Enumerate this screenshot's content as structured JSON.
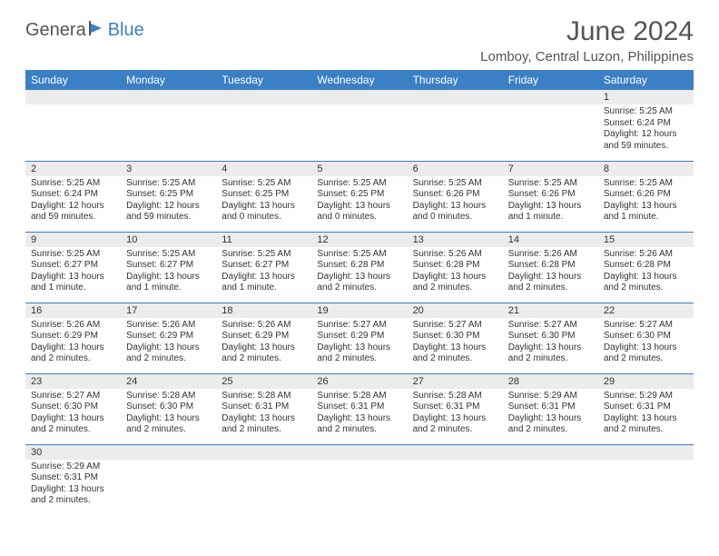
{
  "logo": {
    "part1": "Genera",
    "part2": "Blue"
  },
  "title": "June 2024",
  "location": "Lomboy, Central Luzon, Philippines",
  "colors": {
    "header_bg": "#3b7fc4",
    "header_fg": "#ffffff",
    "daynum_bg": "#ececec",
    "row_divider": "#3b7fc4",
    "text": "#333333",
    "title": "#555555",
    "logo_accent": "#3b7fc4"
  },
  "weekdays": [
    "Sunday",
    "Monday",
    "Tuesday",
    "Wednesday",
    "Thursday",
    "Friday",
    "Saturday"
  ],
  "weeks": [
    [
      null,
      null,
      null,
      null,
      null,
      null,
      {
        "n": "1",
        "sr": "5:25 AM",
        "ss": "6:24 PM",
        "dl": "12 hours and 59 minutes."
      }
    ],
    [
      {
        "n": "2",
        "sr": "5:25 AM",
        "ss": "6:24 PM",
        "dl": "12 hours and 59 minutes."
      },
      {
        "n": "3",
        "sr": "5:25 AM",
        "ss": "6:25 PM",
        "dl": "12 hours and 59 minutes."
      },
      {
        "n": "4",
        "sr": "5:25 AM",
        "ss": "6:25 PM",
        "dl": "13 hours and 0 minutes."
      },
      {
        "n": "5",
        "sr": "5:25 AM",
        "ss": "6:25 PM",
        "dl": "13 hours and 0 minutes."
      },
      {
        "n": "6",
        "sr": "5:25 AM",
        "ss": "6:26 PM",
        "dl": "13 hours and 0 minutes."
      },
      {
        "n": "7",
        "sr": "5:25 AM",
        "ss": "6:26 PM",
        "dl": "13 hours and 1 minute."
      },
      {
        "n": "8",
        "sr": "5:25 AM",
        "ss": "6:26 PM",
        "dl": "13 hours and 1 minute."
      }
    ],
    [
      {
        "n": "9",
        "sr": "5:25 AM",
        "ss": "6:27 PM",
        "dl": "13 hours and 1 minute."
      },
      {
        "n": "10",
        "sr": "5:25 AM",
        "ss": "6:27 PM",
        "dl": "13 hours and 1 minute."
      },
      {
        "n": "11",
        "sr": "5:25 AM",
        "ss": "6:27 PM",
        "dl": "13 hours and 1 minute."
      },
      {
        "n": "12",
        "sr": "5:25 AM",
        "ss": "6:28 PM",
        "dl": "13 hours and 2 minutes."
      },
      {
        "n": "13",
        "sr": "5:26 AM",
        "ss": "6:28 PM",
        "dl": "13 hours and 2 minutes."
      },
      {
        "n": "14",
        "sr": "5:26 AM",
        "ss": "6:28 PM",
        "dl": "13 hours and 2 minutes."
      },
      {
        "n": "15",
        "sr": "5:26 AM",
        "ss": "6:28 PM",
        "dl": "13 hours and 2 minutes."
      }
    ],
    [
      {
        "n": "16",
        "sr": "5:26 AM",
        "ss": "6:29 PM",
        "dl": "13 hours and 2 minutes."
      },
      {
        "n": "17",
        "sr": "5:26 AM",
        "ss": "6:29 PM",
        "dl": "13 hours and 2 minutes."
      },
      {
        "n": "18",
        "sr": "5:26 AM",
        "ss": "6:29 PM",
        "dl": "13 hours and 2 minutes."
      },
      {
        "n": "19",
        "sr": "5:27 AM",
        "ss": "6:29 PM",
        "dl": "13 hours and 2 minutes."
      },
      {
        "n": "20",
        "sr": "5:27 AM",
        "ss": "6:30 PM",
        "dl": "13 hours and 2 minutes."
      },
      {
        "n": "21",
        "sr": "5:27 AM",
        "ss": "6:30 PM",
        "dl": "13 hours and 2 minutes."
      },
      {
        "n": "22",
        "sr": "5:27 AM",
        "ss": "6:30 PM",
        "dl": "13 hours and 2 minutes."
      }
    ],
    [
      {
        "n": "23",
        "sr": "5:27 AM",
        "ss": "6:30 PM",
        "dl": "13 hours and 2 minutes."
      },
      {
        "n": "24",
        "sr": "5:28 AM",
        "ss": "6:30 PM",
        "dl": "13 hours and 2 minutes."
      },
      {
        "n": "25",
        "sr": "5:28 AM",
        "ss": "6:31 PM",
        "dl": "13 hours and 2 minutes."
      },
      {
        "n": "26",
        "sr": "5:28 AM",
        "ss": "6:31 PM",
        "dl": "13 hours and 2 minutes."
      },
      {
        "n": "27",
        "sr": "5:28 AM",
        "ss": "6:31 PM",
        "dl": "13 hours and 2 minutes."
      },
      {
        "n": "28",
        "sr": "5:29 AM",
        "ss": "6:31 PM",
        "dl": "13 hours and 2 minutes."
      },
      {
        "n": "29",
        "sr": "5:29 AM",
        "ss": "6:31 PM",
        "dl": "13 hours and 2 minutes."
      }
    ],
    [
      {
        "n": "30",
        "sr": "5:29 AM",
        "ss": "6:31 PM",
        "dl": "13 hours and 2 minutes."
      },
      null,
      null,
      null,
      null,
      null,
      null
    ]
  ],
  "labels": {
    "sunrise": "Sunrise:",
    "sunset": "Sunset:",
    "daylight": "Daylight:"
  }
}
